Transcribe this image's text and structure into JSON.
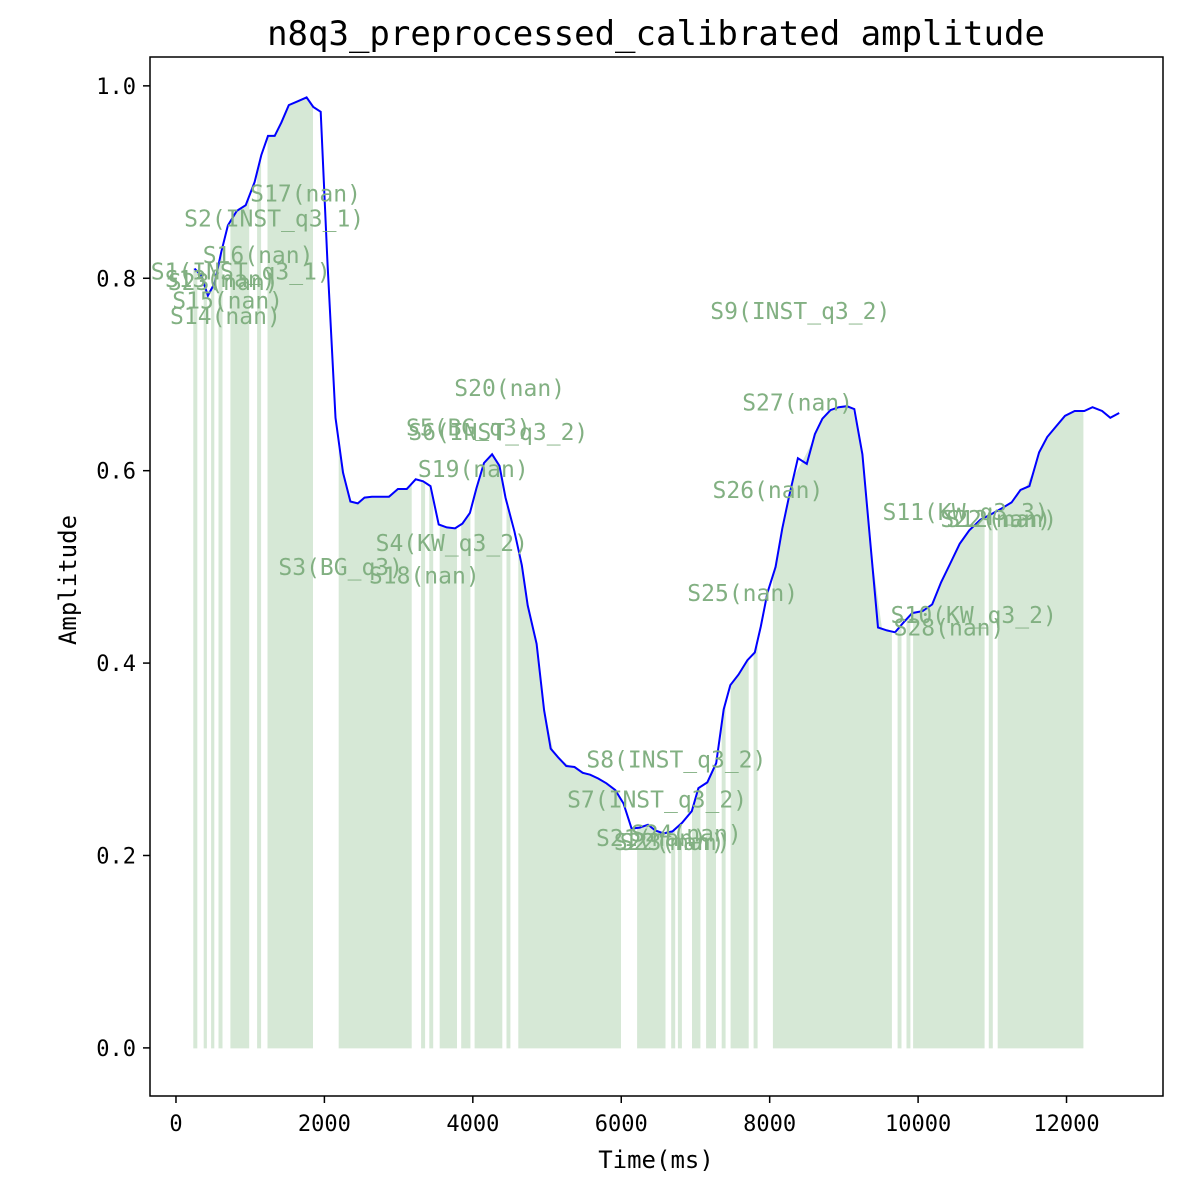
{
  "chart_data": {
    "type": "line",
    "title": "n8q3_preprocessed_calibrated amplitude",
    "xlabel": "Time(ms)",
    "ylabel": "Amplitude",
    "xlim": [
      -350,
      13300
    ],
    "ylim": [
      -0.05,
      1.03
    ],
    "x_ticks": [
      0,
      2000,
      4000,
      6000,
      8000,
      10000,
      12000
    ],
    "x_tick_labels": [
      "0",
      "2000",
      "4000",
      "6000",
      "8000",
      "10000",
      "12000"
    ],
    "y_ticks": [
      0.0,
      0.2,
      0.4,
      0.6,
      0.8,
      1.0
    ],
    "y_tick_labels": [
      "0.0",
      "0.2",
      "0.4",
      "0.6",
      "0.8",
      "1.0"
    ],
    "grid": false,
    "colors": {
      "line": "#0000ff",
      "segment_fill": "#d6e8d6",
      "segment_label": "#82b082"
    },
    "series": [
      {
        "x": [
          250,
          340,
          430,
          520,
          610,
          700,
          820,
          940,
          1060,
          1150,
          1240,
          1330,
          1420,
          1520,
          1640,
          1760,
          1850,
          1950,
          2040,
          2150,
          2250,
          2350,
          2450,
          2540,
          2640,
          2760,
          2870,
          2990,
          3110,
          3230,
          3330,
          3430,
          3540,
          3650,
          3760,
          3860,
          3960,
          4050,
          4150,
          4260,
          4360,
          4440,
          4560,
          4660,
          4740,
          4860,
          4960,
          5050,
          5150,
          5260,
          5370,
          5480,
          5580,
          5690,
          5800,
          5920,
          6030,
          6140,
          6250,
          6360,
          6460,
          6570,
          6690,
          6820,
          6950,
          7040,
          7160,
          7280,
          7380,
          7470,
          7580,
          7700,
          7800,
          7880,
          7970,
          8080,
          8170,
          8260,
          8380,
          8500,
          8610,
          8710,
          8820,
          8930,
          9040,
          9140,
          9250,
          9360,
          9460,
          9580,
          9690,
          9800,
          9920,
          10060,
          10190,
          10310,
          10430,
          10560,
          10690,
          10840,
          10990,
          11130,
          11260,
          11380,
          11500,
          11630,
          11740,
          11860,
          11980,
          12110,
          12240,
          12350,
          12480,
          12590,
          12710
        ],
        "y": [
          0.81,
          0.803,
          0.782,
          0.795,
          0.827,
          0.855,
          0.87,
          0.876,
          0.9,
          0.928,
          0.948,
          0.948,
          0.962,
          0.98,
          0.984,
          0.988,
          0.978,
          0.973,
          0.818,
          0.655,
          0.598,
          0.568,
          0.566,
          0.572,
          0.573,
          0.573,
          0.573,
          0.581,
          0.581,
          0.591,
          0.589,
          0.584,
          0.544,
          0.541,
          0.54,
          0.545,
          0.556,
          0.582,
          0.608,
          0.617,
          0.605,
          0.572,
          0.537,
          0.502,
          0.46,
          0.42,
          0.351,
          0.311,
          0.302,
          0.293,
          0.292,
          0.286,
          0.284,
          0.28,
          0.275,
          0.268,
          0.254,
          0.228,
          0.229,
          0.232,
          0.226,
          0.223,
          0.225,
          0.234,
          0.246,
          0.27,
          0.276,
          0.296,
          0.352,
          0.377,
          0.388,
          0.403,
          0.411,
          0.438,
          0.473,
          0.5,
          0.54,
          0.573,
          0.613,
          0.607,
          0.638,
          0.654,
          0.663,
          0.666,
          0.667,
          0.664,
          0.617,
          0.522,
          0.437,
          0.434,
          0.432,
          0.442,
          0.452,
          0.454,
          0.461,
          0.484,
          0.503,
          0.524,
          0.538,
          0.549,
          0.555,
          0.561,
          0.567,
          0.58,
          0.584,
          0.619,
          0.635,
          0.646,
          0.657,
          0.662,
          0.662,
          0.666,
          0.662,
          0.655,
          0.66
        ]
      }
    ],
    "shaded_segments": [
      [
        240,
        280
      ],
      [
        380,
        410
      ],
      [
        480,
        510
      ],
      [
        580,
        620
      ],
      [
        740,
        980
      ],
      [
        1100,
        1140
      ],
      [
        1240,
        1840
      ],
      [
        2200,
        3170
      ],
      [
        3310,
        3350
      ],
      [
        3420,
        3460
      ],
      [
        3560,
        3780
      ],
      [
        3850,
        3960
      ],
      [
        4030,
        4390
      ],
      [
        4460,
        4500
      ],
      [
        4620,
        5990
      ],
      [
        6220,
        6590
      ],
      [
        6680,
        6720
      ],
      [
        6770,
        6810
      ],
      [
        6960,
        7060
      ],
      [
        7150,
        7270
      ],
      [
        7360,
        7400
      ],
      [
        7480,
        7710
      ],
      [
        7790,
        7830
      ],
      [
        8050,
        9640
      ],
      [
        9730,
        9770
      ],
      [
        9850,
        9890
      ],
      [
        9940,
        10890
      ],
      [
        10960,
        11000
      ],
      [
        11080,
        12220
      ]
    ],
    "annotations": [
      {
        "text": "S17(nan)",
        "x": 1000,
        "y": 0.888
      },
      {
        "text": "S2(INST_q3_1)",
        "x": 110,
        "y": 0.862
      },
      {
        "text": "S16(nan)",
        "x": 360,
        "y": 0.824
      },
      {
        "text": "S1(INST_q3_1)",
        "x": -340,
        "y": 0.807
      },
      {
        "text": "S13(nan)",
        "x": -150,
        "y": 0.799
      },
      {
        "text": "S23(nan)",
        "x": -110,
        "y": 0.796
      },
      {
        "text": "S15(nan)",
        "x": -50,
        "y": 0.777
      },
      {
        "text": "S14(nan)",
        "x": -80,
        "y": 0.761
      },
      {
        "text": "S9(INST_q3_2)",
        "x": 7200,
        "y": 0.766
      },
      {
        "text": "S20(nan)",
        "x": 3750,
        "y": 0.686
      },
      {
        "text": "S27(nan)",
        "x": 7630,
        "y": 0.671
      },
      {
        "text": "S5(BG_q3)",
        "x": 3100,
        "y": 0.645
      },
      {
        "text": "S6(INST_q3_2)",
        "x": 3130,
        "y": 0.64
      },
      {
        "text": "S19(nan)",
        "x": 3260,
        "y": 0.602
      },
      {
        "text": "S26(nan)",
        "x": 7230,
        "y": 0.58
      },
      {
        "text": "S11(KW_q3_3)",
        "x": 9520,
        "y": 0.557
      },
      {
        "text": "S22(nan)",
        "x": 10300,
        "y": 0.55
      },
      {
        "text": "S12(nan)",
        "x": 10380,
        "y": 0.55
      },
      {
        "text": "S4(KW_q3_2)",
        "x": 2690,
        "y": 0.525
      },
      {
        "text": "S3(BG_q3)",
        "x": 1380,
        "y": 0.5
      },
      {
        "text": "S18(nan)",
        "x": 2600,
        "y": 0.491
      },
      {
        "text": "S25(nan)",
        "x": 6890,
        "y": 0.473
      },
      {
        "text": "S10(KW_q3_2)",
        "x": 9630,
        "y": 0.45
      },
      {
        "text": "S28(nan)",
        "x": 9670,
        "y": 0.437
      },
      {
        "text": "S8(INST_q3_2)",
        "x": 5530,
        "y": 0.3
      },
      {
        "text": "S7(INST_q3_2)",
        "x": 5270,
        "y": 0.258
      },
      {
        "text": "S24(nan)",
        "x": 6130,
        "y": 0.223
      },
      {
        "text": "S21(nan)",
        "x": 5660,
        "y": 0.218
      },
      {
        "text": "S22(nan)",
        "x": 5900,
        "y": 0.214
      },
      {
        "text": "S23(nan)",
        "x": 5980,
        "y": 0.214
      }
    ]
  }
}
